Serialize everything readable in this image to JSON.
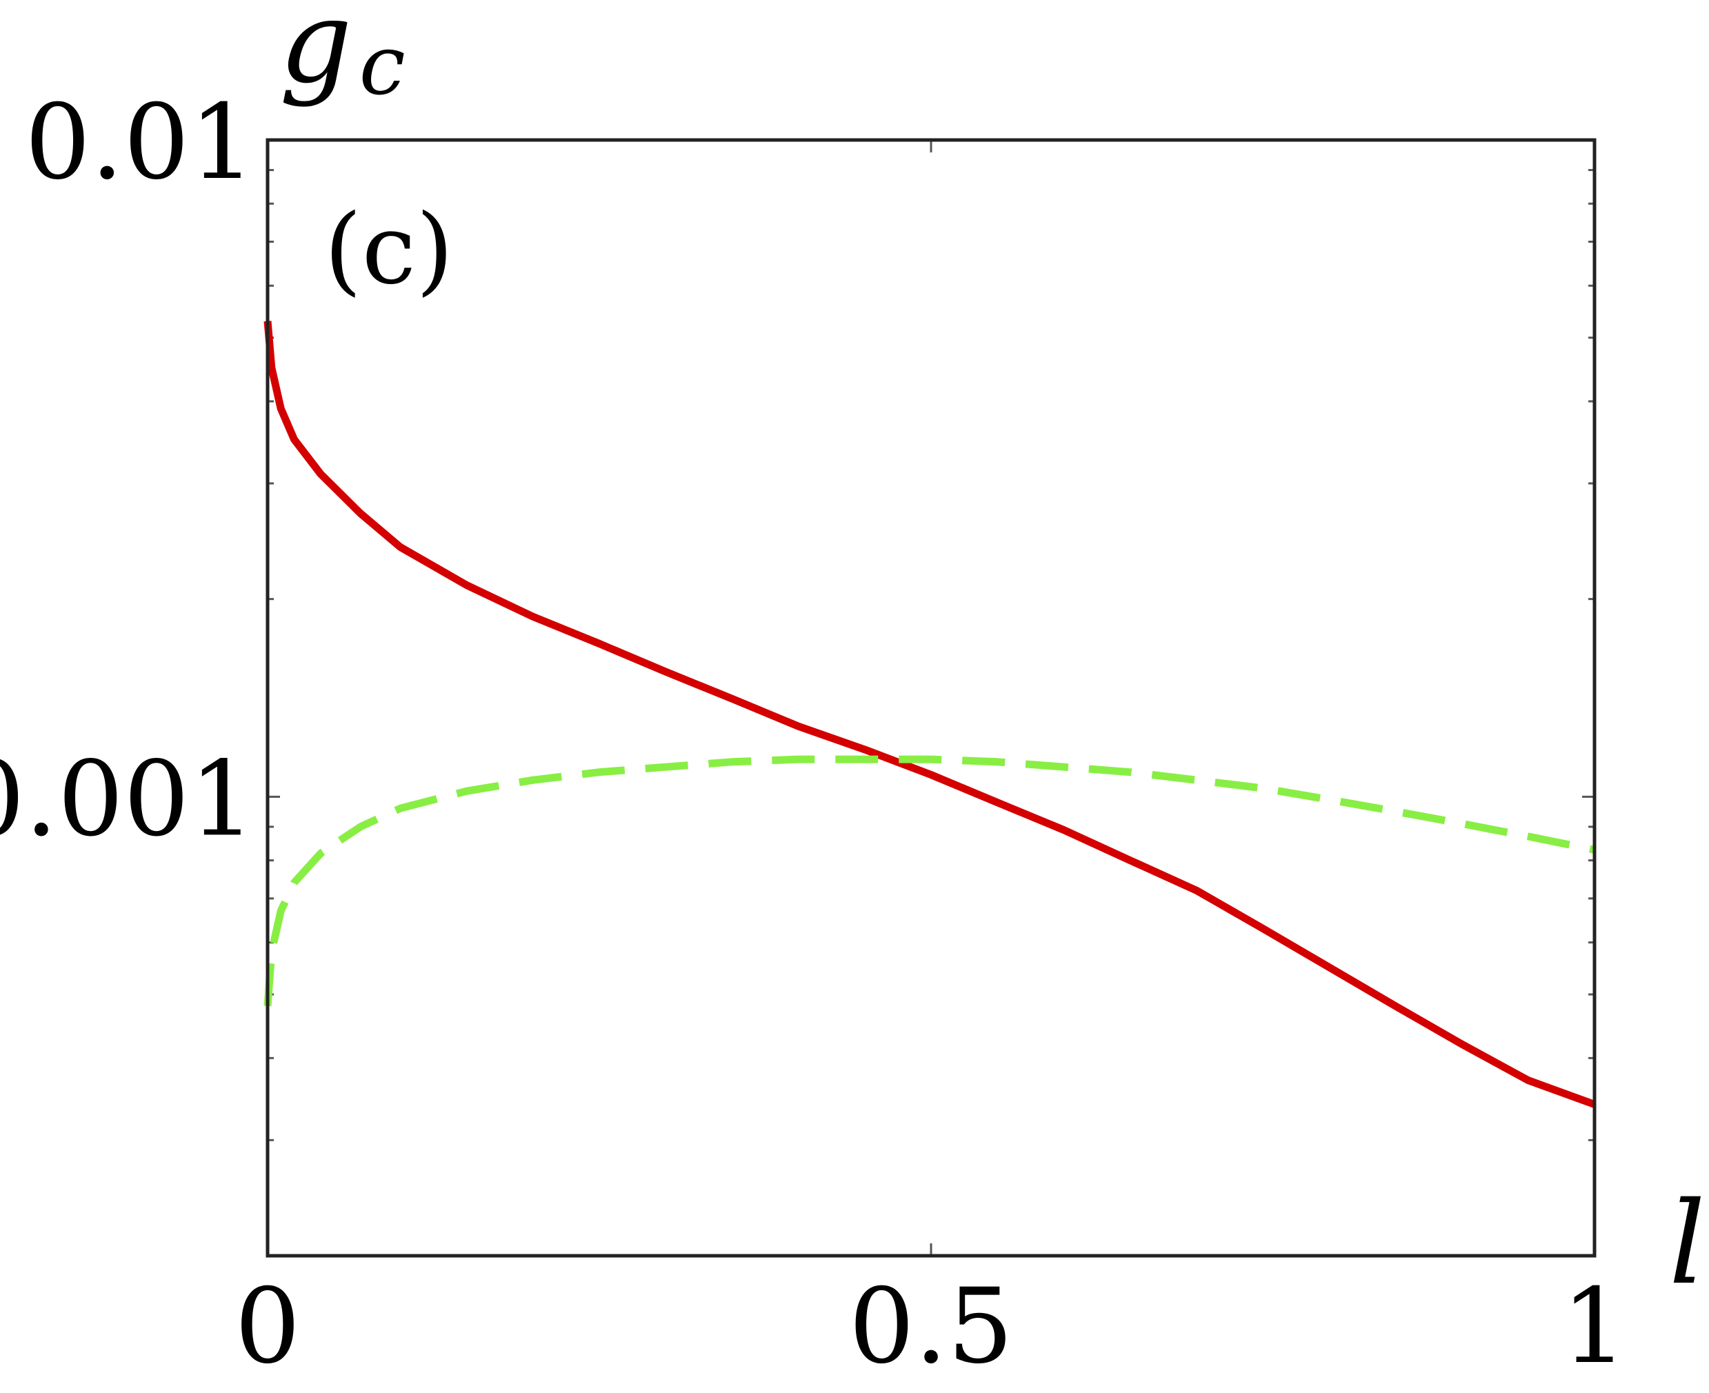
{
  "chart_data": {
    "type": "line",
    "title": "",
    "panel_label": "(c)",
    "xlabel": "l",
    "ylabel": "g_c",
    "ylabel_main": "g",
    "ylabel_sub": "c",
    "xlim": [
      0,
      1
    ],
    "ylim": [
      0.0002,
      0.01
    ],
    "yscale": "log",
    "x_ticks": [
      {
        "value": 0,
        "label": "0"
      },
      {
        "value": 0.5,
        "label": "0.5"
      },
      {
        "value": 1,
        "label": "1"
      }
    ],
    "y_ticks": [
      {
        "value": 0.001,
        "label": "0.001"
      },
      {
        "value": 0.01,
        "label": "0.01"
      }
    ],
    "grid": false,
    "legend": "none",
    "series": [
      {
        "style": "solid",
        "color": "#d40000",
        "points": [
          [
            0.0,
            0.0053
          ],
          [
            0.003,
            0.0045
          ],
          [
            0.01,
            0.0039
          ],
          [
            0.02,
            0.0035
          ],
          [
            0.04,
            0.0031
          ],
          [
            0.07,
            0.0027
          ],
          [
            0.1,
            0.0024
          ],
          [
            0.15,
            0.0021
          ],
          [
            0.2,
            0.00188
          ],
          [
            0.25,
            0.00171
          ],
          [
            0.3,
            0.00155
          ],
          [
            0.35,
            0.00141
          ],
          [
            0.4,
            0.00128
          ],
          [
            0.45,
            0.00118
          ],
          [
            0.5,
            0.00108
          ],
          [
            0.55,
            0.00098
          ],
          [
            0.6,
            0.00089
          ],
          [
            0.65,
            0.0008
          ],
          [
            0.7,
            0.00072
          ],
          [
            0.75,
            0.00063
          ],
          [
            0.8,
            0.00055
          ],
          [
            0.85,
            0.00048
          ],
          [
            0.9,
            0.00042
          ],
          [
            0.95,
            0.00037
          ],
          [
            1.0,
            0.00034
          ]
        ]
      },
      {
        "style": "dashed",
        "color": "#88ee44",
        "points": [
          [
            0.0,
            0.00048
          ],
          [
            0.003,
            0.00058
          ],
          [
            0.01,
            0.00067
          ],
          [
            0.02,
            0.00074
          ],
          [
            0.04,
            0.00082
          ],
          [
            0.07,
            0.0009
          ],
          [
            0.1,
            0.00096
          ],
          [
            0.15,
            0.00102
          ],
          [
            0.2,
            0.00106
          ],
          [
            0.25,
            0.00109
          ],
          [
            0.3,
            0.00111
          ],
          [
            0.35,
            0.00113
          ],
          [
            0.4,
            0.00114
          ],
          [
            0.45,
            0.00114
          ],
          [
            0.5,
            0.00114
          ],
          [
            0.55,
            0.00113
          ],
          [
            0.6,
            0.00111
          ],
          [
            0.65,
            0.00109
          ],
          [
            0.7,
            0.00106
          ],
          [
            0.75,
            0.00103
          ],
          [
            0.8,
            0.00099
          ],
          [
            0.85,
            0.00095
          ],
          [
            0.9,
            0.00091
          ],
          [
            0.95,
            0.00087
          ],
          [
            1.0,
            0.00083
          ]
        ]
      }
    ]
  }
}
